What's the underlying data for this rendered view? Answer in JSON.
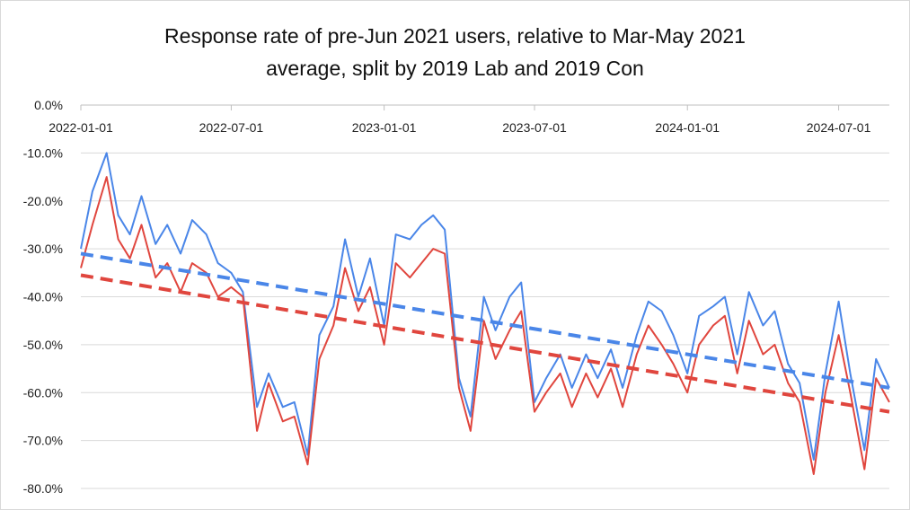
{
  "chart_data": {
    "type": "line",
    "title": {
      "line1": "Response rate of pre-Jun 2021 users, relative to Mar-May 2021",
      "line2": "average, split by 2019 Lab and 2019 Con"
    },
    "xlabel": "",
    "ylabel": "",
    "x_tick_labels": [
      "2022-01-01",
      "2022-07-01",
      "2023-01-01",
      "2023-07-01",
      "2024-01-01",
      "2024-07-01"
    ],
    "y_tick_labels": [
      "0.0%",
      "-10.0%",
      "-20.0%",
      "-30.0%",
      "-40.0%",
      "-50.0%",
      "-60.0%",
      "-70.0%",
      "-80.0%"
    ],
    "xlim": [
      "2022-01-01",
      "2024-08-31"
    ],
    "ylim": [
      -0.8,
      0.0
    ],
    "grid": "horizontal",
    "legend": "none",
    "series": [
      {
        "color": "#4a86e8",
        "x": [
          "2022-01-01",
          "2022-01-15",
          "2022-02-01",
          "2022-02-15",
          "2022-03-01",
          "2022-03-15",
          "2022-04-01",
          "2022-04-15",
          "2022-05-01",
          "2022-05-15",
          "2022-06-01",
          "2022-06-15",
          "2022-07-01",
          "2022-07-15",
          "2022-08-01",
          "2022-08-15",
          "2022-09-01",
          "2022-09-15",
          "2022-10-01",
          "2022-10-15",
          "2022-11-01",
          "2022-11-15",
          "2022-12-01",
          "2022-12-15",
          "2023-01-01",
          "2023-01-15",
          "2023-02-01",
          "2023-02-15",
          "2023-03-01",
          "2023-03-15",
          "2023-04-01",
          "2023-04-15",
          "2023-05-01",
          "2023-05-15",
          "2023-06-01",
          "2023-06-15",
          "2023-07-01",
          "2023-07-15",
          "2023-08-01",
          "2023-08-15",
          "2023-09-01",
          "2023-09-15",
          "2023-10-01",
          "2023-10-15",
          "2023-11-01",
          "2023-11-15",
          "2023-12-01",
          "2023-12-15",
          "2024-01-01",
          "2024-01-15",
          "2024-02-01",
          "2024-02-15",
          "2024-03-01",
          "2024-03-15",
          "2024-04-01",
          "2024-04-15",
          "2024-05-01",
          "2024-05-15",
          "2024-06-01",
          "2024-06-15",
          "2024-07-01",
          "2024-07-15",
          "2024-08-01",
          "2024-08-15",
          "2024-08-31"
        ],
        "values": [
          -0.3,
          -0.18,
          -0.1,
          -0.23,
          -0.27,
          -0.19,
          -0.29,
          -0.25,
          -0.31,
          -0.24,
          -0.27,
          -0.33,
          -0.35,
          -0.39,
          -0.63,
          -0.56,
          -0.63,
          -0.62,
          -0.73,
          -0.48,
          -0.42,
          -0.28,
          -0.4,
          -0.32,
          -0.46,
          -0.27,
          -0.28,
          -0.25,
          -0.23,
          -0.26,
          -0.57,
          -0.65,
          -0.4,
          -0.47,
          -0.4,
          -0.37,
          -0.62,
          -0.57,
          -0.52,
          -0.59,
          -0.52,
          -0.57,
          -0.51,
          -0.59,
          -0.48,
          -0.41,
          -0.43,
          -0.48,
          -0.56,
          -0.44,
          -0.42,
          -0.4,
          -0.52,
          -0.39,
          -0.46,
          -0.43,
          -0.54,
          -0.58,
          -0.74,
          -0.56,
          -0.41,
          -0.56,
          -0.72,
          -0.53,
          -0.59
        ]
      },
      {
        "color": "#e0463e",
        "x": [
          "2022-01-01",
          "2022-01-15",
          "2022-02-01",
          "2022-02-15",
          "2022-03-01",
          "2022-03-15",
          "2022-04-01",
          "2022-04-15",
          "2022-05-01",
          "2022-05-15",
          "2022-06-01",
          "2022-06-15",
          "2022-07-01",
          "2022-07-15",
          "2022-08-01",
          "2022-08-15",
          "2022-09-01",
          "2022-09-15",
          "2022-10-01",
          "2022-10-15",
          "2022-11-01",
          "2022-11-15",
          "2022-12-01",
          "2022-12-15",
          "2023-01-01",
          "2023-01-15",
          "2023-02-01",
          "2023-02-15",
          "2023-03-01",
          "2023-03-15",
          "2023-04-01",
          "2023-04-15",
          "2023-05-01",
          "2023-05-15",
          "2023-06-01",
          "2023-06-15",
          "2023-07-01",
          "2023-07-15",
          "2023-08-01",
          "2023-08-15",
          "2023-09-01",
          "2023-09-15",
          "2023-10-01",
          "2023-10-15",
          "2023-11-01",
          "2023-11-15",
          "2023-12-01",
          "2023-12-15",
          "2024-01-01",
          "2024-01-15",
          "2024-02-01",
          "2024-02-15",
          "2024-03-01",
          "2024-03-15",
          "2024-04-01",
          "2024-04-15",
          "2024-05-01",
          "2024-05-15",
          "2024-06-01",
          "2024-06-15",
          "2024-07-01",
          "2024-07-15",
          "2024-08-01",
          "2024-08-15",
          "2024-08-31"
        ],
        "values": [
          -0.34,
          -0.25,
          -0.15,
          -0.28,
          -0.32,
          -0.25,
          -0.36,
          -0.33,
          -0.39,
          -0.33,
          -0.35,
          -0.4,
          -0.38,
          -0.4,
          -0.68,
          -0.58,
          -0.66,
          -0.65,
          -0.75,
          -0.53,
          -0.46,
          -0.34,
          -0.43,
          -0.38,
          -0.5,
          -0.33,
          -0.36,
          -0.33,
          -0.3,
          -0.31,
          -0.59,
          -0.68,
          -0.45,
          -0.53,
          -0.47,
          -0.43,
          -0.64,
          -0.6,
          -0.56,
          -0.63,
          -0.56,
          -0.61,
          -0.55,
          -0.63,
          -0.52,
          -0.46,
          -0.5,
          -0.54,
          -0.6,
          -0.5,
          -0.46,
          -0.44,
          -0.56,
          -0.45,
          -0.52,
          -0.5,
          -0.58,
          -0.62,
          -0.77,
          -0.6,
          -0.48,
          -0.6,
          -0.76,
          -0.57,
          -0.62
        ]
      }
    ],
    "trendlines": [
      {
        "color": "#4a86e8",
        "x": [
          "2022-01-01",
          "2024-08-31"
        ],
        "values": [
          -0.31,
          -0.59
        ]
      },
      {
        "color": "#e0463e",
        "x": [
          "2022-01-01",
          "2024-08-31"
        ],
        "values": [
          -0.355,
          -0.64
        ]
      }
    ]
  }
}
